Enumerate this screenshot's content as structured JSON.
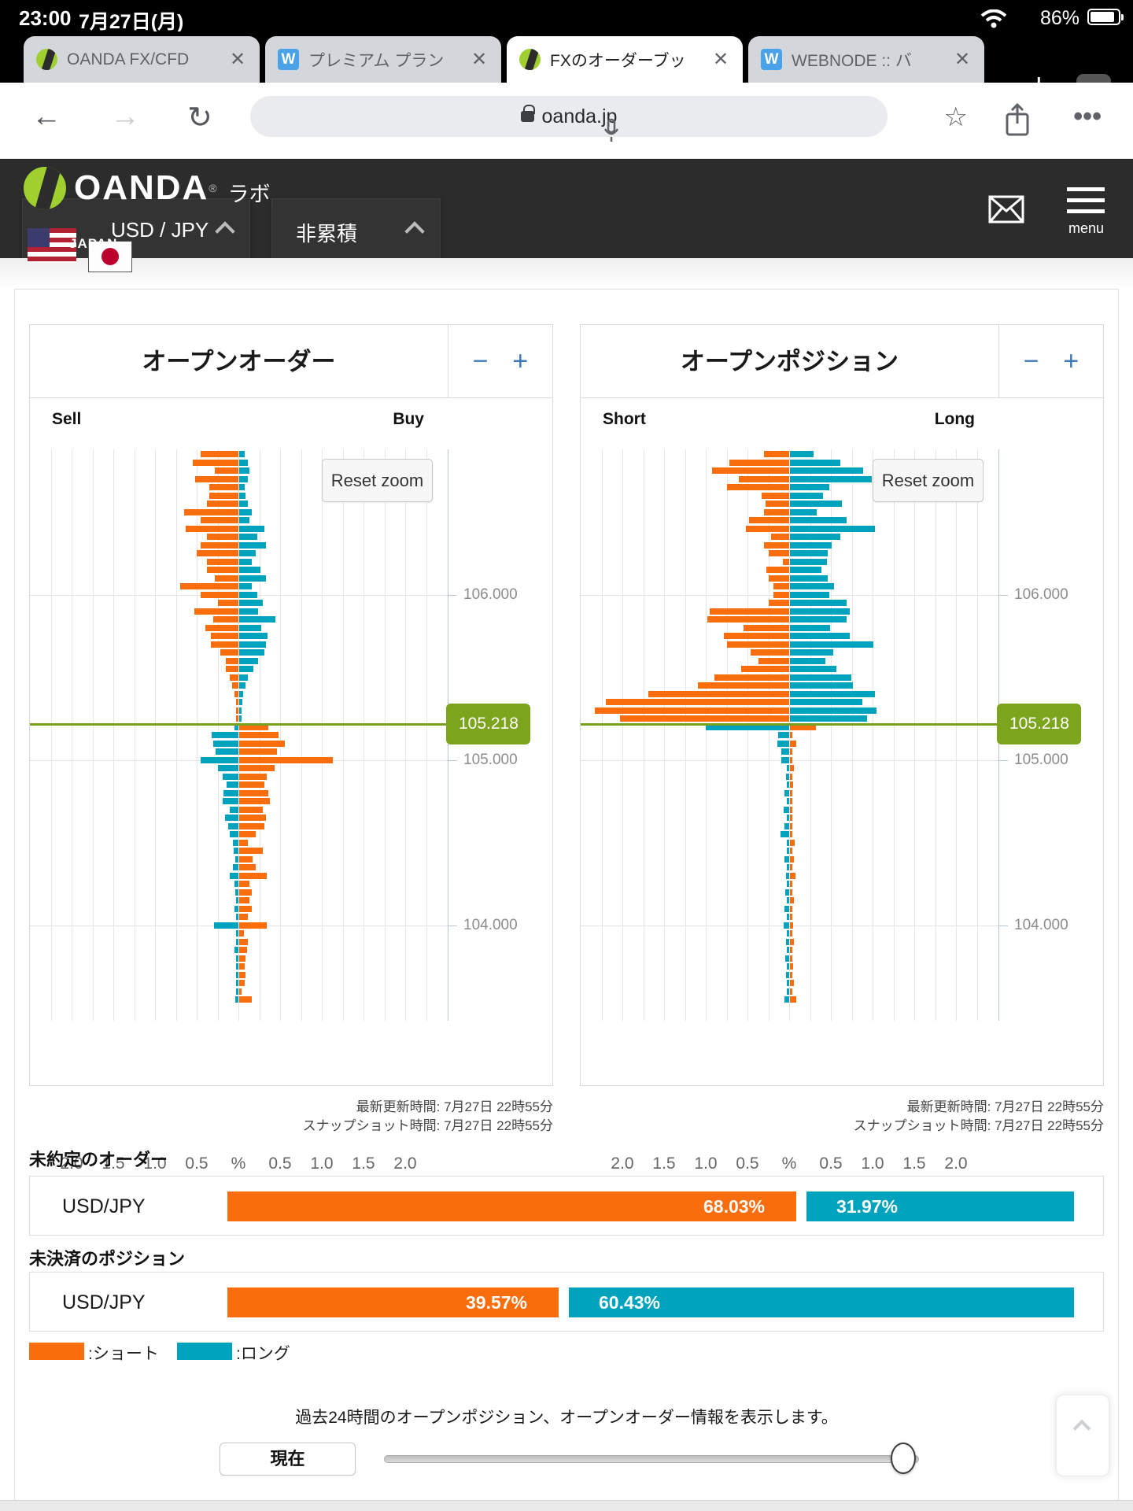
{
  "colors": {
    "orange": "#f96d0c",
    "teal": "#00a3bd",
    "green": "#7ca41d",
    "header_bg": "#2d2c2c"
  },
  "status_bar": {
    "time": "23:00",
    "date": "7月27日(月)",
    "battery": "86%"
  },
  "browser": {
    "tabs": [
      {
        "label": "OANDA FX/CFD",
        "favicon": "oanda-favicon",
        "active": false,
        "close": "✕"
      },
      {
        "label": "プレミアム プラン",
        "favicon": "webnode-favicon",
        "active": false,
        "close": "✕"
      },
      {
        "label": "FXのオーダーブッ",
        "favicon": "oanda-favicon",
        "active": true,
        "close": "✕"
      },
      {
        "label": "WEBNODE :: バ",
        "favicon": "webnode-favicon",
        "active": false,
        "close": "✕"
      }
    ],
    "new_tab_label": "+",
    "tab_count": "4",
    "url": "oanda.jp"
  },
  "site_header": {
    "brand": "OANDA",
    "brand_reg": "®",
    "brand_suffix": "ラボ",
    "region": "JAPAN",
    "pair_select": "USD / JPY",
    "mode_select": "非累積",
    "menu_label": "menu"
  },
  "chart_data": [
    {
      "type": "bar",
      "title": "オープンオーダー",
      "left_label": "Sell",
      "right_label": "Buy",
      "reset_zoom_label": "Reset zoom",
      "current_price": "105.218",
      "current_price_value": 105.218,
      "x_ticks": [
        "2.0",
        "1.5",
        "1.0",
        "0.5",
        "%",
        "0.5",
        "1.0",
        "1.5",
        "2.0"
      ],
      "price_ticks": [
        {
          "label": "106.000",
          "value": 106.0
        },
        {
          "label": "105.000",
          "value": 105.0
        },
        {
          "label": "104.000",
          "value": 104.0
        }
      ],
      "top_price": 106.85,
      "price_step": 0.05,
      "note_left_right": "rows are [left_bar_pct,right_bar_pct]; above current price left=sell(orange)/right=buy(teal), below it left=buy(teal)/right=sell(orange)",
      "rows": [
        [
          0.45,
          0.07
        ],
        [
          0.55,
          0.1
        ],
        [
          0.28,
          0.12
        ],
        [
          0.52,
          0.1
        ],
        [
          0.35,
          0.07
        ],
        [
          0.35,
          0.08
        ],
        [
          0.38,
          0.1
        ],
        [
          0.65,
          0.15
        ],
        [
          0.45,
          0.12
        ],
        [
          0.63,
          0.3
        ],
        [
          0.38,
          0.22
        ],
        [
          0.45,
          0.32
        ],
        [
          0.5,
          0.2
        ],
        [
          0.38,
          0.15
        ],
        [
          0.38,
          0.25
        ],
        [
          0.28,
          0.32
        ],
        [
          0.7,
          0.15
        ],
        [
          0.45,
          0.22
        ],
        [
          0.25,
          0.28
        ],
        [
          0.53,
          0.23
        ],
        [
          0.3,
          0.43
        ],
        [
          0.4,
          0.26
        ],
        [
          0.33,
          0.34
        ],
        [
          0.33,
          0.32
        ],
        [
          0.22,
          0.3
        ],
        [
          0.15,
          0.23
        ],
        [
          0.15,
          0.17
        ],
        [
          0.1,
          0.1
        ],
        [
          0.08,
          0.08
        ],
        [
          0.05,
          0.05
        ],
        [
          0.03,
          0.04
        ],
        [
          0.02,
          0.03
        ],
        [
          0.01,
          0.02
        ],
        [
          0.05,
          0.35
        ],
        [
          0.32,
          0.47
        ],
        [
          0.3,
          0.55
        ],
        [
          0.27,
          0.45
        ],
        [
          0.45,
          1.12
        ],
        [
          0.25,
          0.42
        ],
        [
          0.19,
          0.33
        ],
        [
          0.14,
          0.3
        ],
        [
          0.18,
          0.35
        ],
        [
          0.19,
          0.37
        ],
        [
          0.1,
          0.28
        ],
        [
          0.16,
          0.32
        ],
        [
          0.12,
          0.3
        ],
        [
          0.1,
          0.2
        ],
        [
          0.07,
          0.1
        ],
        [
          0.06,
          0.28
        ],
        [
          0.04,
          0.16
        ],
        [
          0.07,
          0.2
        ],
        [
          0.1,
          0.33
        ],
        [
          0.05,
          0.12
        ],
        [
          0.04,
          0.15
        ],
        [
          0.03,
          0.12
        ],
        [
          0.05,
          0.15
        ],
        [
          0.03,
          0.1
        ],
        [
          0.29,
          0.33
        ],
        [
          0.02,
          0.06
        ],
        [
          0.02,
          0.1
        ],
        [
          0.05,
          0.09
        ],
        [
          0.03,
          0.08
        ],
        [
          0.03,
          0.07
        ],
        [
          0.02,
          0.08
        ],
        [
          0.01,
          0.07
        ],
        [
          0.02,
          0.03
        ],
        [
          0.04,
          0.15
        ]
      ],
      "updated": "最新更新時間: 7月27日 22時55分",
      "snapshot": "スナップショット時間: 7月27日 22時55分"
    },
    {
      "type": "bar",
      "title": "オープンポジション",
      "left_label": "Short",
      "right_label": "Long",
      "reset_zoom_label": "Reset zoom",
      "current_price": "105.218",
      "current_price_value": 105.218,
      "x_ticks": [
        "2.0",
        "1.5",
        "1.0",
        "0.5",
        "%",
        "0.5",
        "1.0",
        "1.5",
        "2.0"
      ],
      "price_ticks": [
        {
          "label": "106.000",
          "value": 106.0
        },
        {
          "label": "105.000",
          "value": 105.0
        },
        {
          "label": "104.000",
          "value": 104.0
        }
      ],
      "top_price": 106.85,
      "price_step": 0.05,
      "note_left_right": "rows are [left_bar_pct,right_bar_pct]; above current price left=short(orange)/right=long(teal), below it left=long(teal)/right=short(orange)",
      "rows": [
        [
          0.3,
          0.28
        ],
        [
          0.72,
          0.6
        ],
        [
          0.92,
          0.88
        ],
        [
          0.6,
          0.98
        ],
        [
          0.75,
          0.47
        ],
        [
          0.33,
          0.4
        ],
        [
          0.28,
          0.62
        ],
        [
          0.3,
          0.32
        ],
        [
          0.48,
          0.68
        ],
        [
          0.52,
          1.02
        ],
        [
          0.22,
          0.6
        ],
        [
          0.3,
          0.5
        ],
        [
          0.25,
          0.45
        ],
        [
          0.08,
          0.44
        ],
        [
          0.27,
          0.38
        ],
        [
          0.25,
          0.45
        ],
        [
          0.19,
          0.53
        ],
        [
          0.19,
          0.47
        ],
        [
          0.25,
          0.68
        ],
        [
          0.95,
          0.72
        ],
        [
          0.98,
          0.68
        ],
        [
          0.55,
          0.48
        ],
        [
          0.78,
          0.72
        ],
        [
          0.75,
          1.0
        ],
        [
          0.46,
          0.52
        ],
        [
          0.37,
          0.42
        ],
        [
          0.58,
          0.56
        ],
        [
          0.9,
          0.74
        ],
        [
          1.09,
          0.75
        ],
        [
          1.69,
          1.02
        ],
        [
          2.2,
          0.87
        ],
        [
          2.33,
          1.04
        ],
        [
          2.03,
          0.92
        ],
        [
          1.0,
          0.31
        ],
        [
          0.13,
          0.02
        ],
        [
          0.14,
          0.08
        ],
        [
          0.09,
          0.01
        ],
        [
          0.09,
          0.02
        ],
        [
          0.02,
          0.05
        ],
        [
          0.04,
          0.01
        ],
        [
          0.01,
          0.04
        ],
        [
          0.06,
          0.01
        ],
        [
          0.02,
          0.02
        ],
        [
          0.07,
          0.03
        ],
        [
          0.03,
          0.03
        ],
        [
          0.06,
          0.01
        ],
        [
          0.1,
          0.02
        ],
        [
          0.03,
          0.06
        ],
        [
          0.02,
          0.02
        ],
        [
          0.06,
          0.05
        ],
        [
          0.03,
          0.02
        ],
        [
          0.04,
          0.07
        ],
        [
          0.02,
          0.02
        ],
        [
          0.05,
          0.03
        ],
        [
          0.03,
          0.05
        ],
        [
          0.06,
          0.02
        ],
        [
          0.02,
          0.03
        ],
        [
          0.07,
          0.04
        ],
        [
          0.03,
          0.02
        ],
        [
          0.04,
          0.05
        ],
        [
          0.02,
          0.03
        ],
        [
          0.05,
          0.02
        ],
        [
          0.02,
          0.04
        ],
        [
          0.04,
          0.02
        ],
        [
          0.02,
          0.05
        ],
        [
          0.03,
          0.02
        ],
        [
          0.06,
          0.08
        ]
      ],
      "updated": "最新更新時間: 7月27日 22時55分",
      "snapshot": "スナップショット時間: 7月27日 22時55分"
    }
  ],
  "summary": {
    "orders": {
      "title": "未約定のオーダー",
      "pair": "USD/JPY",
      "short_label": "68.03%",
      "long_label": "31.97%",
      "short_value": 68.03,
      "long_value": 31.97
    },
    "positions": {
      "title": "未決済のポジション",
      "pair": "USD/JPY",
      "short_label": "39.57%",
      "long_label": "60.43%",
      "short_value": 39.57,
      "long_value": 60.43
    }
  },
  "legend": {
    "short": ":ショート",
    "long": ":ロング"
  },
  "footer": {
    "note": "過去24時間のオープンポジション、オープンオーダー情報を表示します。",
    "current_button": "現在"
  }
}
